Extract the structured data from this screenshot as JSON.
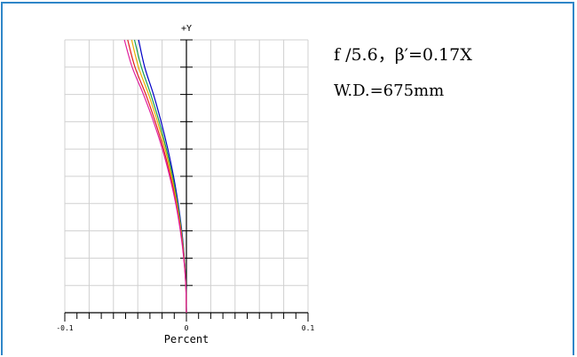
{
  "annotations": {
    "line1": "f /5.6，β′=0.17X",
    "line2": "W.D.=675mm"
  },
  "chart_data": {
    "type": "line",
    "title": "",
    "xlabel": "Percent",
    "ylabel": "+Y",
    "xlim": [
      -0.1,
      0.1
    ],
    "ylim": [
      0,
      1
    ],
    "x_tick_labels": [
      "-0.1",
      "0",
      "0.1"
    ],
    "grid": true,
    "series": [
      {
        "color": "#0000c8",
        "x": [
          0,
          -0.0004,
          -0.0017,
          -0.0038,
          -0.0068,
          -0.0106,
          -0.0153,
          -0.0208,
          -0.0271,
          -0.0343,
          -0.0393
        ],
        "y": [
          0,
          0.1,
          0.2,
          0.3,
          0.4,
          0.5,
          0.6,
          0.7,
          0.8,
          0.9,
          1.0
        ]
      },
      {
        "color": "#18a050",
        "x": [
          0,
          -0.0004,
          -0.0018,
          -0.0041,
          -0.0073,
          -0.0114,
          -0.0165,
          -0.0224,
          -0.0293,
          -0.037,
          -0.0427
        ],
        "y": [
          0,
          0.1,
          0.2,
          0.3,
          0.4,
          0.5,
          0.6,
          0.7,
          0.8,
          0.9,
          1.0
        ]
      },
      {
        "color": "#e8b000",
        "x": [
          0,
          -0.0005,
          -0.0019,
          -0.0044,
          -0.0078,
          -0.0122,
          -0.0175,
          -0.0238,
          -0.0311,
          -0.0394,
          -0.045
        ],
        "y": [
          0,
          0.1,
          0.2,
          0.3,
          0.4,
          0.5,
          0.6,
          0.7,
          0.8,
          0.9,
          1.0
        ]
      },
      {
        "color": "#e02020",
        "x": [
          0,
          -0.0005,
          -0.0021,
          -0.0047,
          -0.0084,
          -0.0131,
          -0.0188,
          -0.0256,
          -0.0334,
          -0.0423,
          -0.0483
        ],
        "y": [
          0,
          0.1,
          0.2,
          0.3,
          0.4,
          0.5,
          0.6,
          0.7,
          0.8,
          0.9,
          1.0
        ]
      },
      {
        "color": "#e020a0",
        "x": [
          0,
          -0.0005,
          -0.0022,
          -0.005,
          -0.0088,
          -0.0138,
          -0.0198,
          -0.027,
          -0.0353,
          -0.0446,
          -0.051
        ],
        "y": [
          0,
          0.1,
          0.2,
          0.3,
          0.4,
          0.5,
          0.6,
          0.7,
          0.8,
          0.9,
          1.0
        ]
      }
    ]
  }
}
